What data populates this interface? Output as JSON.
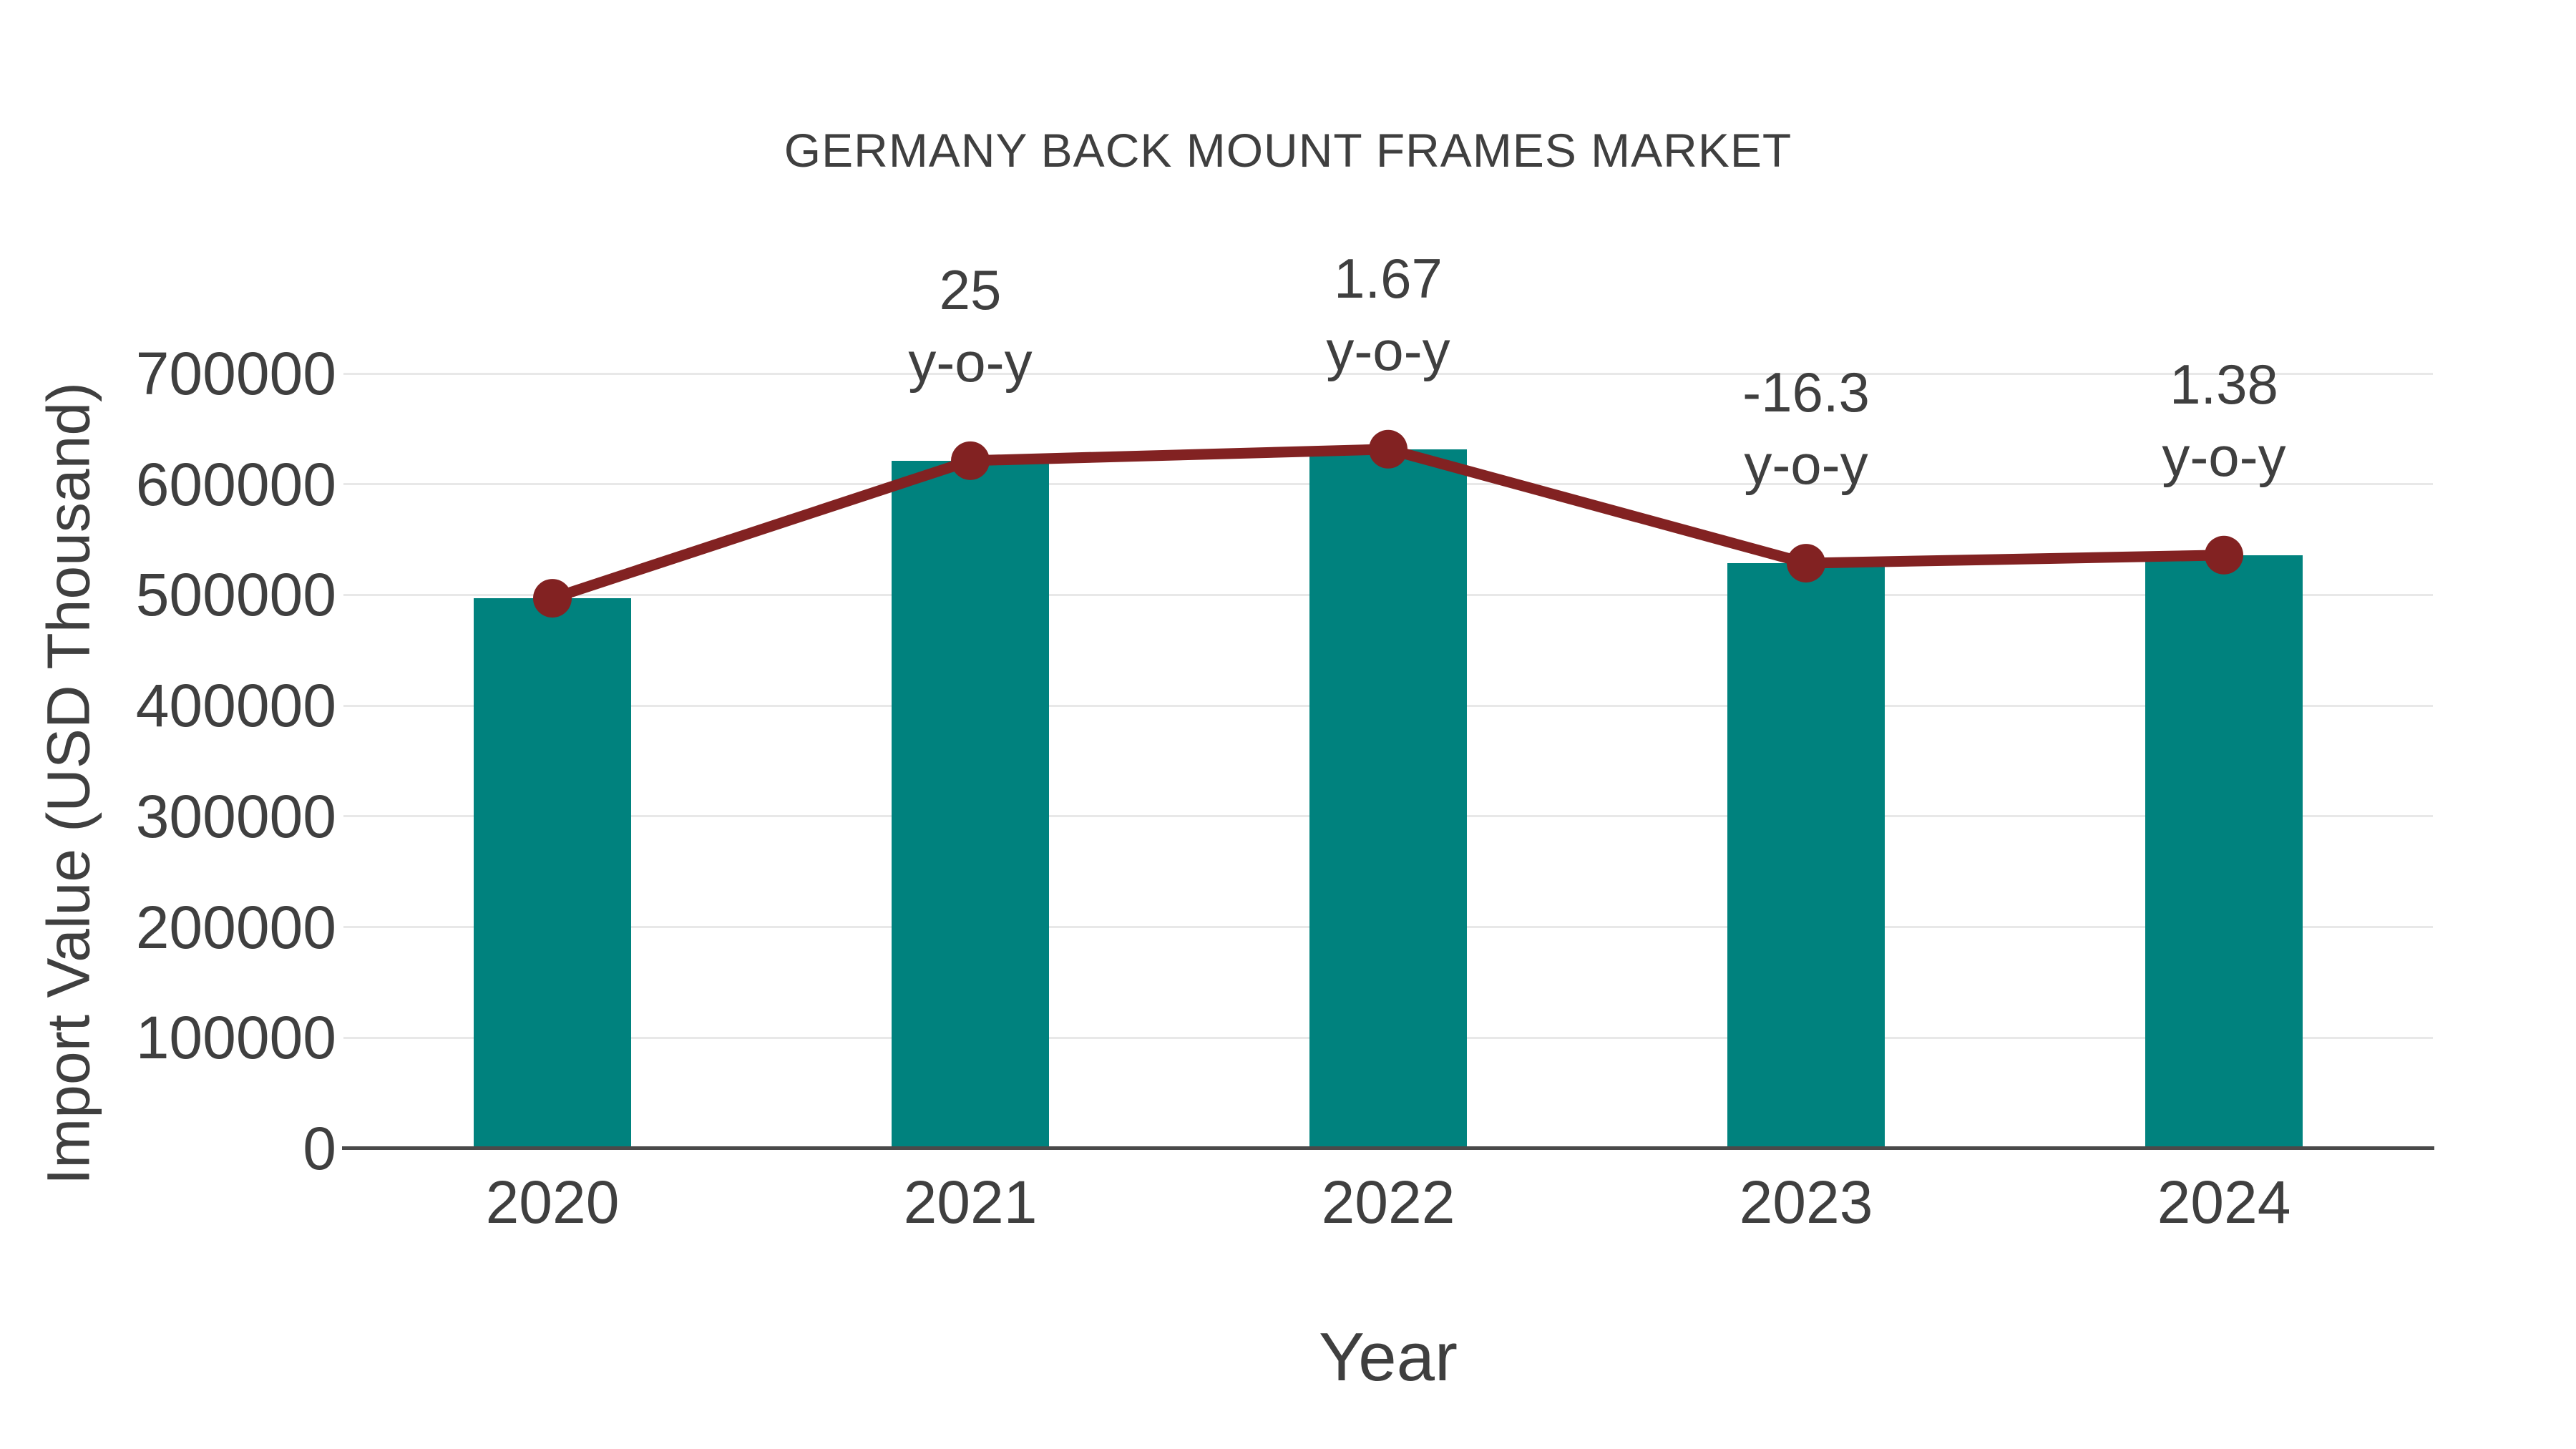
{
  "chart_data": {
    "type": "bar",
    "title": "GERMANY BACK MOUNT FRAMES MARKET",
    "xlabel": "Year",
    "ylabel": "Import Value (USD Thousand)",
    "categories": [
      "2020",
      "2021",
      "2022",
      "2023",
      "2024"
    ],
    "series": [
      {
        "name": "Import Value",
        "type": "bar",
        "color": "#00827e",
        "values": [
          497000,
          621250,
          631630,
          528670,
          535970
        ]
      },
      {
        "name": "Import Value trend",
        "type": "line",
        "color": "#822222",
        "marker": "circle",
        "values": [
          497000,
          621250,
          631630,
          528670,
          535970
        ]
      }
    ],
    "yoy_percent": [
      null,
      25,
      1.67,
      -16.3,
      1.38
    ],
    "annotations": [
      {
        "category": "2021",
        "lines": [
          "25",
          "y-o-y"
        ]
      },
      {
        "category": "2022",
        "lines": [
          "1.67",
          "y-o-y"
        ]
      },
      {
        "category": "2023",
        "lines": [
          "-16.3",
          "y-o-y"
        ]
      },
      {
        "category": "2024",
        "lines": [
          "1.38",
          "y-o-y"
        ]
      }
    ],
    "ylim": [
      0,
      700000
    ],
    "yticks": [
      0,
      100000,
      200000,
      300000,
      400000,
      500000,
      600000,
      700000
    ],
    "grid": "horizontal",
    "legend": "none",
    "colors": {
      "bar": "#00827e",
      "line": "#822222",
      "text": "#3f3f3f",
      "gridline": "#e8e8e8",
      "axis": "#4a4a4a",
      "background": "#ffffff"
    }
  }
}
